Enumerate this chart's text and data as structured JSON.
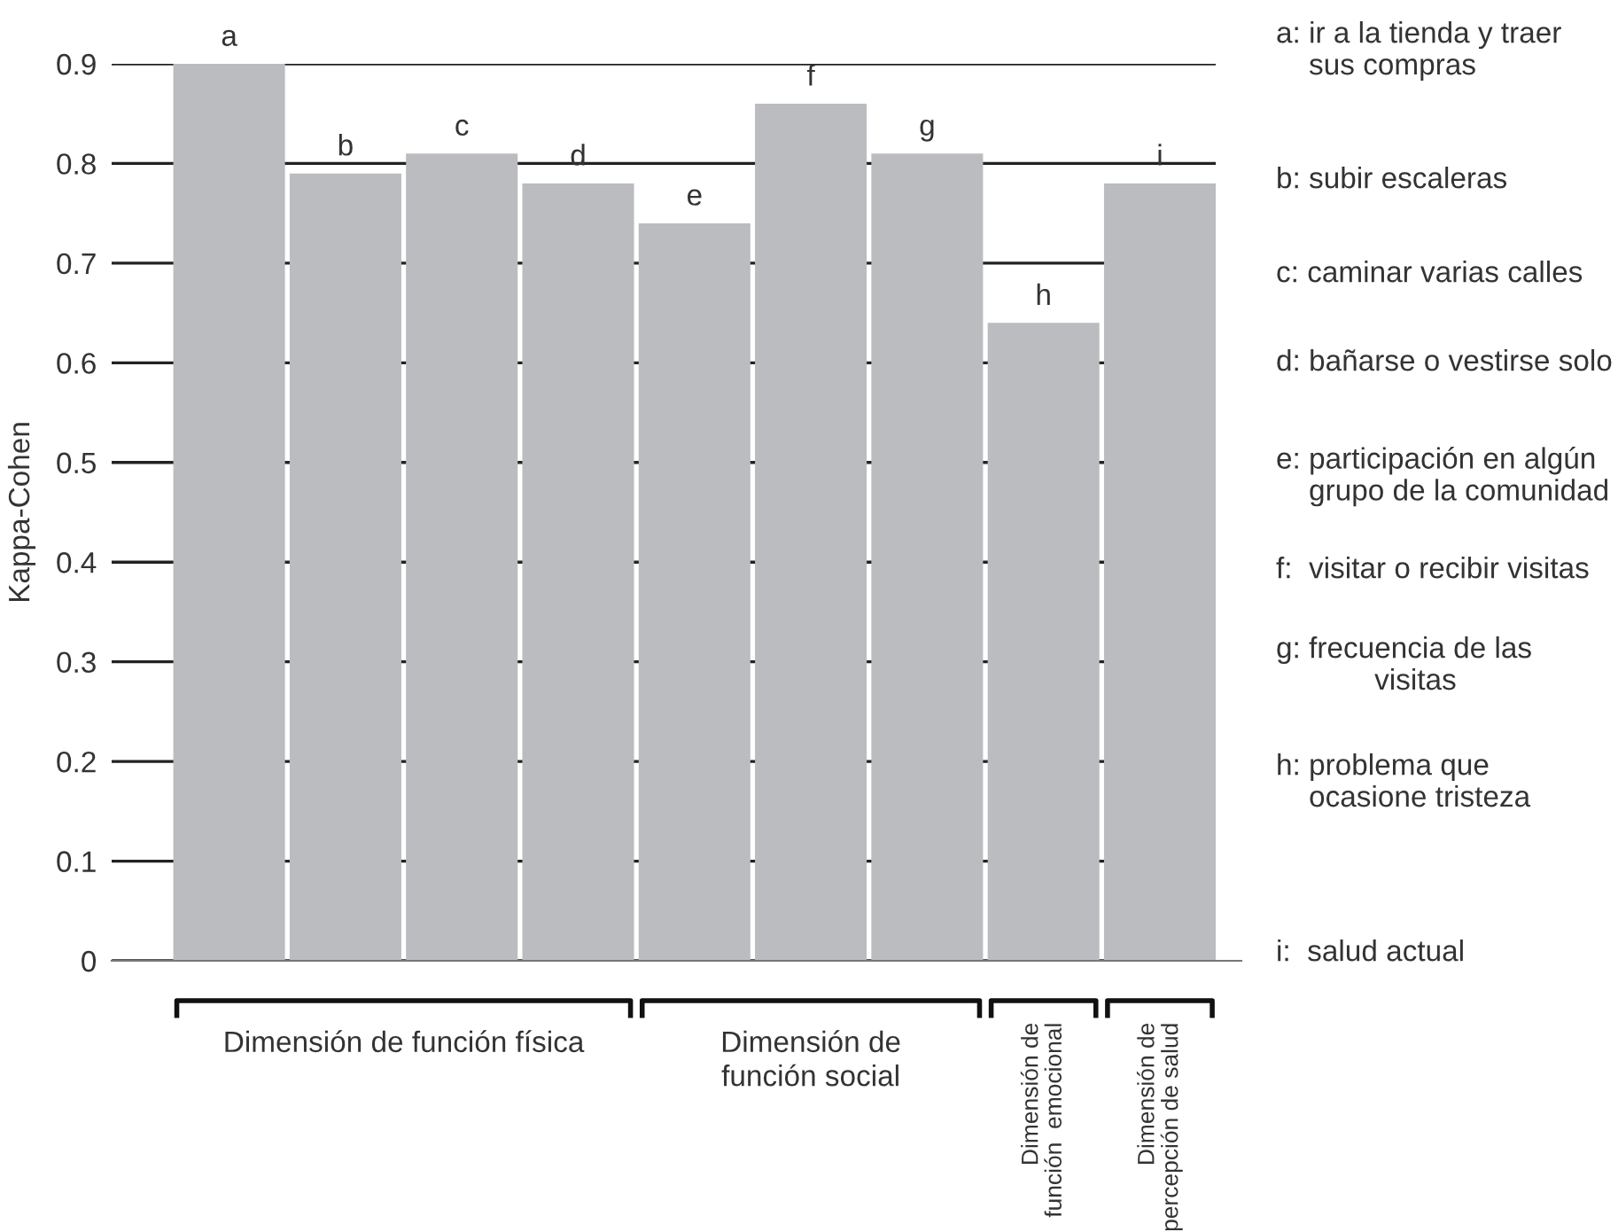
{
  "chart_data": {
    "type": "bar",
    "ylabel": "Kappa-Cohen",
    "categories": [
      "a",
      "b",
      "c",
      "d",
      "e",
      "f",
      "g",
      "h",
      "i"
    ],
    "values": [
      0.9,
      0.79,
      0.81,
      0.78,
      0.74,
      0.86,
      0.81,
      0.64,
      0.78
    ],
    "color": "#bbbcc0",
    "ylim": [
      0,
      0.9
    ],
    "yticks": [
      0,
      0.1,
      0.2,
      0.3,
      0.4,
      0.5,
      0.6,
      0.7,
      0.8,
      0.9
    ],
    "grid": "y",
    "annotations": [
      "a: ir a la tienda y traer\n    sus compras",
      "b: subir escaleras",
      "c: caminar varias calles",
      "d: bañarse o vestirse solo",
      "e: participación en algún\n    grupo de la comunidad",
      "f:  visitar o recibir visitas",
      "g: frecuencia de las\n            visitas",
      "h: problema que\n    ocasione tristeza",
      "i:  salud actual",
      "Dimensión de función física",
      "Dimensión de\nfunción social",
      "Dimensión de\nfunción  emocional",
      "Dimensión de\npercepción de salud"
    ]
  }
}
